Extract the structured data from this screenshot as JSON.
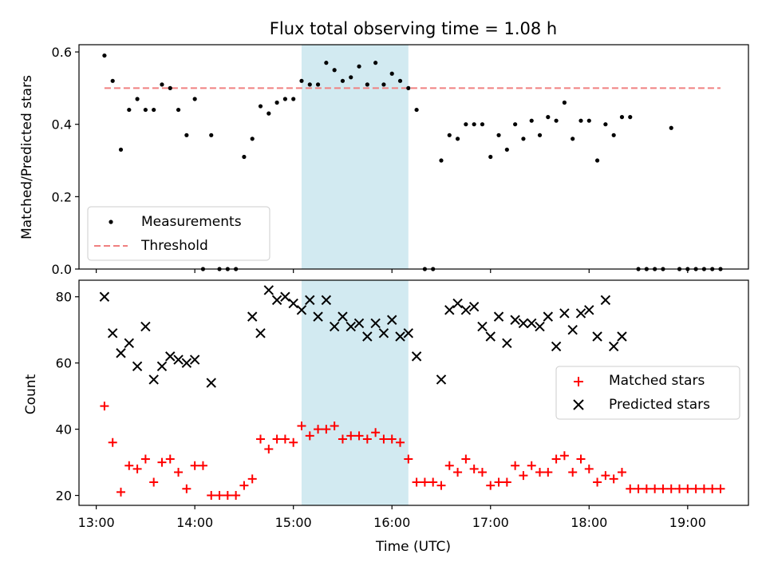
{
  "chart_data": [
    {
      "type": "scatter",
      "title": "Flux total observing time = 1.08 h",
      "xlabel": "",
      "ylabel": "Matched/Predicted stars",
      "ylim": [
        0,
        0.62
      ],
      "yticks": [
        "0.0",
        "0.2",
        "0.4",
        "0.6"
      ],
      "highlight_span": {
        "start": "15:05",
        "end": "16:10",
        "color": "#add8e6"
      },
      "threshold": {
        "name": "Threshold",
        "value": 0.5,
        "x_start": "13:05",
        "x_end": "19:20",
        "color": "#f08080",
        "style": "dashed"
      },
      "series": [
        {
          "name": "Measurements",
          "color": "#000000",
          "marker": "dot",
          "x": [
            "13:05",
            "13:10",
            "13:15",
            "13:20",
            "13:25",
            "13:30",
            "13:35",
            "13:40",
            "13:45",
            "13:50",
            "13:55",
            "14:00",
            "14:05",
            "14:10",
            "14:15",
            "14:20",
            "14:25",
            "14:30",
            "14:35",
            "14:40",
            "14:45",
            "14:50",
            "14:55",
            "15:00",
            "15:05",
            "15:10",
            "15:15",
            "15:20",
            "15:25",
            "15:30",
            "15:35",
            "15:40",
            "15:45",
            "15:50",
            "15:55",
            "16:00",
            "16:05",
            "16:10",
            "16:15",
            "16:20",
            "16:25",
            "16:30",
            "16:35",
            "16:40",
            "16:45",
            "16:50",
            "16:55",
            "17:00",
            "17:05",
            "17:10",
            "17:15",
            "17:20",
            "17:25",
            "17:30",
            "17:35",
            "17:40",
            "17:45",
            "17:50",
            "17:55",
            "18:00",
            "18:05",
            "18:10",
            "18:15",
            "18:20",
            "18:25",
            "18:30",
            "18:35",
            "18:40",
            "18:45",
            "18:50",
            "18:55",
            "19:00",
            "19:05",
            "19:10",
            "19:15",
            "19:20"
          ],
          "y": [
            0.59,
            0.52,
            0.33,
            0.44,
            0.47,
            0.44,
            0.44,
            0.51,
            0.5,
            0.44,
            0.37,
            0.47,
            0.0,
            0.37,
            0.0,
            0.0,
            0.0,
            0.31,
            0.36,
            0.45,
            0.43,
            0.46,
            0.47,
            0.47,
            0.52,
            0.51,
            0.51,
            0.57,
            0.55,
            0.52,
            0.53,
            0.56,
            0.51,
            0.57,
            0.51,
            0.54,
            0.52,
            0.5,
            0.44,
            0.0,
            0.0,
            0.3,
            0.37,
            0.36,
            0.4,
            0.4,
            0.4,
            0.31,
            0.37,
            0.33,
            0.4,
            0.36,
            0.41,
            0.37,
            0.42,
            0.41,
            0.46,
            0.36,
            0.41,
            0.41,
            0.3,
            0.4,
            0.37,
            0.42,
            0.42,
            0.0,
            0.0,
            0.0,
            0.0,
            0.39,
            0.0,
            0.0,
            0.0,
            0.0,
            0.0,
            0.0
          ]
        }
      ],
      "legend": {
        "position": "lower-left",
        "entries": [
          "Measurements",
          "Threshold"
        ]
      }
    },
    {
      "type": "scatter",
      "title": "",
      "xlabel": "Time (UTC)",
      "ylabel": "Count",
      "ylim": [
        17,
        85
      ],
      "yticks": [
        "20",
        "40",
        "60",
        "80"
      ],
      "xticks": [
        "13:00",
        "14:00",
        "15:00",
        "16:00",
        "17:00",
        "18:00",
        "19:00"
      ],
      "highlight_span": {
        "start": "15:05",
        "end": "16:10",
        "color": "#add8e6"
      },
      "series": [
        {
          "name": "Matched stars",
          "color": "#ff0000",
          "marker": "plus",
          "x": [
            "13:05",
            "13:10",
            "13:15",
            "13:20",
            "13:25",
            "13:30",
            "13:35",
            "13:40",
            "13:45",
            "13:50",
            "13:55",
            "14:00",
            "14:05",
            "14:10",
            "14:15",
            "14:20",
            "14:25",
            "14:30",
            "14:35",
            "14:40",
            "14:45",
            "14:50",
            "14:55",
            "15:00",
            "15:05",
            "15:10",
            "15:15",
            "15:20",
            "15:25",
            "15:30",
            "15:35",
            "15:40",
            "15:45",
            "15:50",
            "15:55",
            "16:00",
            "16:05",
            "16:10",
            "16:15",
            "16:20",
            "16:25",
            "16:30",
            "16:35",
            "16:40",
            "16:45",
            "16:50",
            "16:55",
            "17:00",
            "17:05",
            "17:10",
            "17:15",
            "17:20",
            "17:25",
            "17:30",
            "17:35",
            "17:40",
            "17:45",
            "17:50",
            "17:55",
            "18:00",
            "18:05",
            "18:10",
            "18:15",
            "18:20",
            "18:25",
            "18:30",
            "18:35",
            "18:40",
            "18:45",
            "18:50",
            "18:55",
            "19:00",
            "19:05",
            "19:10",
            "19:15",
            "19:20"
          ],
          "y": [
            47,
            36,
            21,
            29,
            28,
            31,
            24,
            30,
            31,
            27,
            22,
            29,
            29,
            20,
            20,
            20,
            20,
            23,
            25,
            37,
            34,
            37,
            37,
            36,
            41,
            38,
            40,
            40,
            41,
            37,
            38,
            38,
            37,
            39,
            37,
            37,
            36,
            31,
            24,
            24,
            24,
            23,
            29,
            27,
            31,
            28,
            27,
            23,
            24,
            24,
            29,
            26,
            29,
            27,
            27,
            31,
            32,
            27,
            31,
            28,
            24,
            26,
            25,
            27,
            22,
            22,
            22,
            22,
            22,
            22,
            22,
            22,
            22,
            22,
            22,
            22
          ]
        },
        {
          "name": "Predicted stars",
          "color": "#000000",
          "marker": "x",
          "x": [
            "13:05",
            "13:10",
            "13:15",
            "13:20",
            "13:25",
            "13:30",
            "13:35",
            "13:40",
            "13:45",
            "13:50",
            "13:55",
            "14:00",
            "14:10",
            "14:35",
            "14:40",
            "14:45",
            "14:50",
            "14:55",
            "15:00",
            "15:05",
            "15:10",
            "15:15",
            "15:20",
            "15:25",
            "15:30",
            "15:35",
            "15:40",
            "15:45",
            "15:50",
            "15:55",
            "16:00",
            "16:05",
            "16:10",
            "16:15",
            "16:30",
            "16:35",
            "16:40",
            "16:45",
            "16:50",
            "16:55",
            "17:00",
            "17:05",
            "17:10",
            "17:15",
            "17:20",
            "17:25",
            "17:30",
            "17:35",
            "17:40",
            "17:45",
            "17:50",
            "17:55",
            "18:00",
            "18:05",
            "18:10",
            "18:15",
            "18:20"
          ],
          "y": [
            80,
            69,
            63,
            66,
            59,
            71,
            55,
            59,
            62,
            61,
            60,
            61,
            54,
            74,
            69,
            82,
            79,
            80,
            78,
            76,
            79,
            74,
            79,
            71,
            74,
            71,
            72,
            68,
            72,
            69,
            73,
            68,
            69,
            62,
            55,
            76,
            78,
            76,
            77,
            71,
            68,
            74,
            66,
            73,
            72,
            72,
            71,
            74,
            65,
            75,
            70,
            75,
            76,
            68,
            79,
            65,
            68
          ]
        }
      ],
      "legend": {
        "position": "center-right",
        "entries": [
          "Matched stars",
          "Predicted stars"
        ]
      }
    }
  ]
}
